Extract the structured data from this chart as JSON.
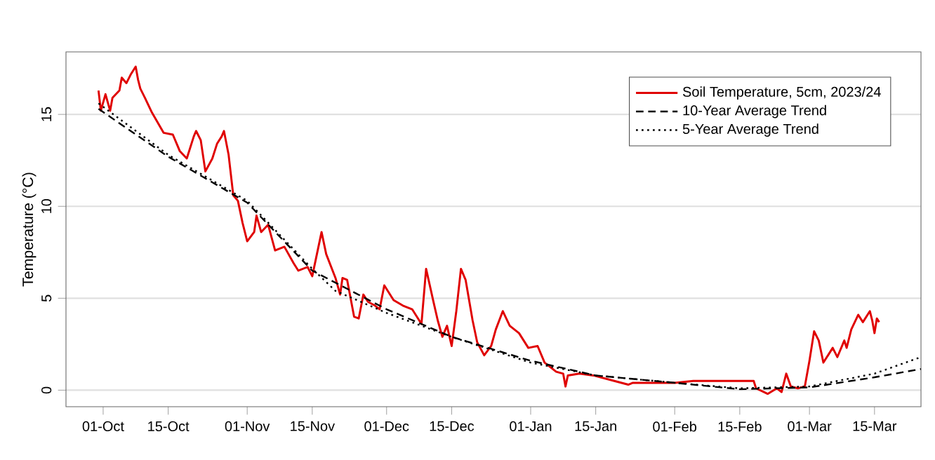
{
  "chart_data": {
    "type": "line",
    "ylabel": "Temperature (°C)",
    "xlim": [
      "2023-09-23",
      "2024-03-25"
    ],
    "ylim": [
      -0.9,
      18.4
    ],
    "xticks": [
      {
        "value": "2023-10-01",
        "label": "01-Oct"
      },
      {
        "value": "2023-10-15",
        "label": "15-Oct"
      },
      {
        "value": "2023-11-01",
        "label": "01-Nov"
      },
      {
        "value": "2023-11-15",
        "label": "15-Nov"
      },
      {
        "value": "2023-12-01",
        "label": "01-Dec"
      },
      {
        "value": "2023-12-15",
        "label": "15-Dec"
      },
      {
        "value": "2024-01-01",
        "label": "01-Jan"
      },
      {
        "value": "2024-01-15",
        "label": "15-Jan"
      },
      {
        "value": "2024-02-01",
        "label": "01-Feb"
      },
      {
        "value": "2024-02-15",
        "label": "15-Feb"
      },
      {
        "value": "2024-03-01",
        "label": "01-Mar"
      },
      {
        "value": "2024-03-15",
        "label": "15-Mar"
      }
    ],
    "yticks": [
      0,
      5,
      10,
      15
    ],
    "grid": "y",
    "legend": "top right",
    "marker": "none",
    "series": [
      {
        "name": "Soil Temperature, 5cm, 2023/24",
        "color": "#e00000",
        "line_style": "solid",
        "x": [
          "2023-09-30",
          "2023-09-30T12:00",
          "2023-10-01T12:00",
          "2023-10-02T12:00",
          "2023-10-03",
          "2023-10-04T12:00",
          "2023-10-05",
          "2023-10-06",
          "2023-10-07",
          "2023-10-08",
          "2023-10-08T12:00",
          "2023-10-09",
          "2023-10-10",
          "2023-10-11T12:00",
          "2023-10-14",
          "2023-10-16",
          "2023-10-17T12:00",
          "2023-10-19",
          "2023-10-20T12:00",
          "2023-10-21",
          "2023-10-22",
          "2023-10-23",
          "2023-10-24T12:00",
          "2023-10-25T12:00",
          "2023-10-26T12:00",
          "2023-10-27",
          "2023-10-28",
          "2023-10-29",
          "2023-10-30",
          "2023-10-31",
          "2023-11-01",
          "2023-11-02T12:00",
          "2023-11-03",
          "2023-11-04",
          "2023-11-05T12:00",
          "2023-11-07",
          "2023-11-09",
          "2023-11-11",
          "2023-11-12",
          "2023-11-14",
          "2023-11-15",
          "2023-11-17",
          "2023-11-18",
          "2023-11-20",
          "2023-11-21",
          "2023-11-21T12:00",
          "2023-11-22T12:00",
          "2023-11-24",
          "2023-11-25",
          "2023-11-26",
          "2023-11-27",
          "2023-11-28T12:00",
          "2023-11-29T12:00",
          "2023-11-30T12:00",
          "2023-12-02T12:00",
          "2023-12-04T12:00",
          "2023-12-06T12:00",
          "2023-12-08T12:00",
          "2023-12-09T12:00",
          "2023-12-11",
          "2023-12-12",
          "2023-12-13",
          "2023-12-14",
          "2023-12-15",
          "2023-12-16",
          "2023-12-17",
          "2023-12-18",
          "2023-12-19T12:00",
          "2023-12-20T12:00",
          "2023-12-22",
          "2023-12-23T12:00",
          "2023-12-24T12:00",
          "2023-12-26",
          "2023-12-27T12:00",
          "2023-12-29T12:00",
          "2023-12-31T12:00",
          "2024-01-02T12:00",
          "2024-01-04",
          "2024-01-06T12:00",
          "2024-01-08",
          "2024-01-08T12:00",
          "2024-01-09",
          "2024-01-11T12:00",
          "2024-01-14T12:00",
          "2024-01-19",
          "2024-01-22",
          "2024-01-23",
          "2024-02-01",
          "2024-02-05",
          "2024-02-09",
          "2024-02-18",
          "2024-02-18T12:00",
          "2024-02-21",
          "2024-02-23",
          "2024-02-24",
          "2024-02-25",
          "2024-02-26",
          "2024-02-27T12:00",
          "2024-02-29",
          "2024-03-01",
          "2024-03-02",
          "2024-03-03",
          "2024-03-04",
          "2024-03-05",
          "2024-03-06",
          "2024-03-07",
          "2024-03-08T12:00",
          "2024-03-09",
          "2024-03-10",
          "2024-03-11T12:00",
          "2024-03-12T12:00",
          "2024-03-14",
          "2024-03-14T12:00",
          "2024-03-15",
          "2024-03-15T12:00",
          "2024-03-16"
        ],
        "values": [
          16.3,
          15.2,
          16.1,
          15.2,
          15.9,
          16.3,
          17.0,
          16.7,
          17.2,
          17.6,
          16.9,
          16.4,
          15.9,
          15.1,
          14.0,
          13.9,
          13.0,
          12.6,
          13.8,
          14.1,
          13.6,
          11.9,
          12.6,
          13.4,
          13.8,
          14.1,
          12.8,
          10.6,
          10.3,
          9.1,
          8.1,
          8.6,
          9.5,
          8.6,
          9.0,
          7.6,
          7.8,
          6.9,
          6.5,
          6.7,
          6.2,
          8.6,
          7.4,
          6.1,
          5.2,
          6.1,
          6.0,
          4.0,
          3.9,
          5.2,
          4.8,
          4.6,
          4.4,
          5.7,
          4.9,
          4.6,
          4.4,
          3.6,
          6.6,
          4.9,
          3.8,
          2.9,
          3.5,
          2.4,
          4.3,
          6.6,
          6.0,
          3.8,
          2.6,
          1.9,
          2.4,
          3.3,
          4.3,
          3.5,
          3.1,
          2.3,
          2.4,
          1.5,
          1.0,
          0.9,
          0.2,
          0.8,
          0.9,
          0.8,
          0.5,
          0.3,
          0.4,
          0.4,
          0.5,
          0.5,
          0.5,
          0.1,
          -0.2,
          0.1,
          -0.1,
          0.9,
          0.2,
          0.1,
          0.2,
          1.6,
          3.2,
          2.7,
          1.5,
          1.9,
          2.3,
          1.8,
          2.7,
          2.3,
          3.3,
          4.1,
          3.7,
          4.3,
          3.8,
          3.1,
          3.9,
          3.7
        ]
      },
      {
        "name": "10-Year Average Trend",
        "color": "#000000",
        "line_style": "dashed",
        "x": [
          "2023-09-30",
          "2023-10-15",
          "2023-11-01",
          "2023-11-15",
          "2023-12-01",
          "2023-12-15",
          "2024-01-01",
          "2024-01-15",
          "2024-02-01",
          "2024-02-15",
          "2024-03-01",
          "2024-03-15",
          "2024-03-25"
        ],
        "values": [
          15.3,
          12.7,
          10.2,
          6.5,
          4.4,
          2.9,
          1.6,
          0.8,
          0.4,
          0.05,
          0.15,
          0.7,
          1.15
        ]
      },
      {
        "name": "5-Year Average Trend",
        "color": "#000000",
        "line_style": "dotted",
        "x": [
          "2023-09-30",
          "2023-10-15",
          "2023-11-01",
          "2023-11-15",
          "2023-11-20",
          "2023-12-01",
          "2023-12-15",
          "2024-01-01",
          "2024-01-15",
          "2024-02-01",
          "2024-02-15",
          "2024-03-01",
          "2024-03-15",
          "2024-03-25"
        ],
        "values": [
          15.6,
          12.8,
          10.3,
          6.6,
          5.4,
          4.2,
          2.9,
          1.5,
          0.8,
          0.4,
          0.1,
          0.2,
          0.9,
          1.8
        ]
      }
    ]
  }
}
